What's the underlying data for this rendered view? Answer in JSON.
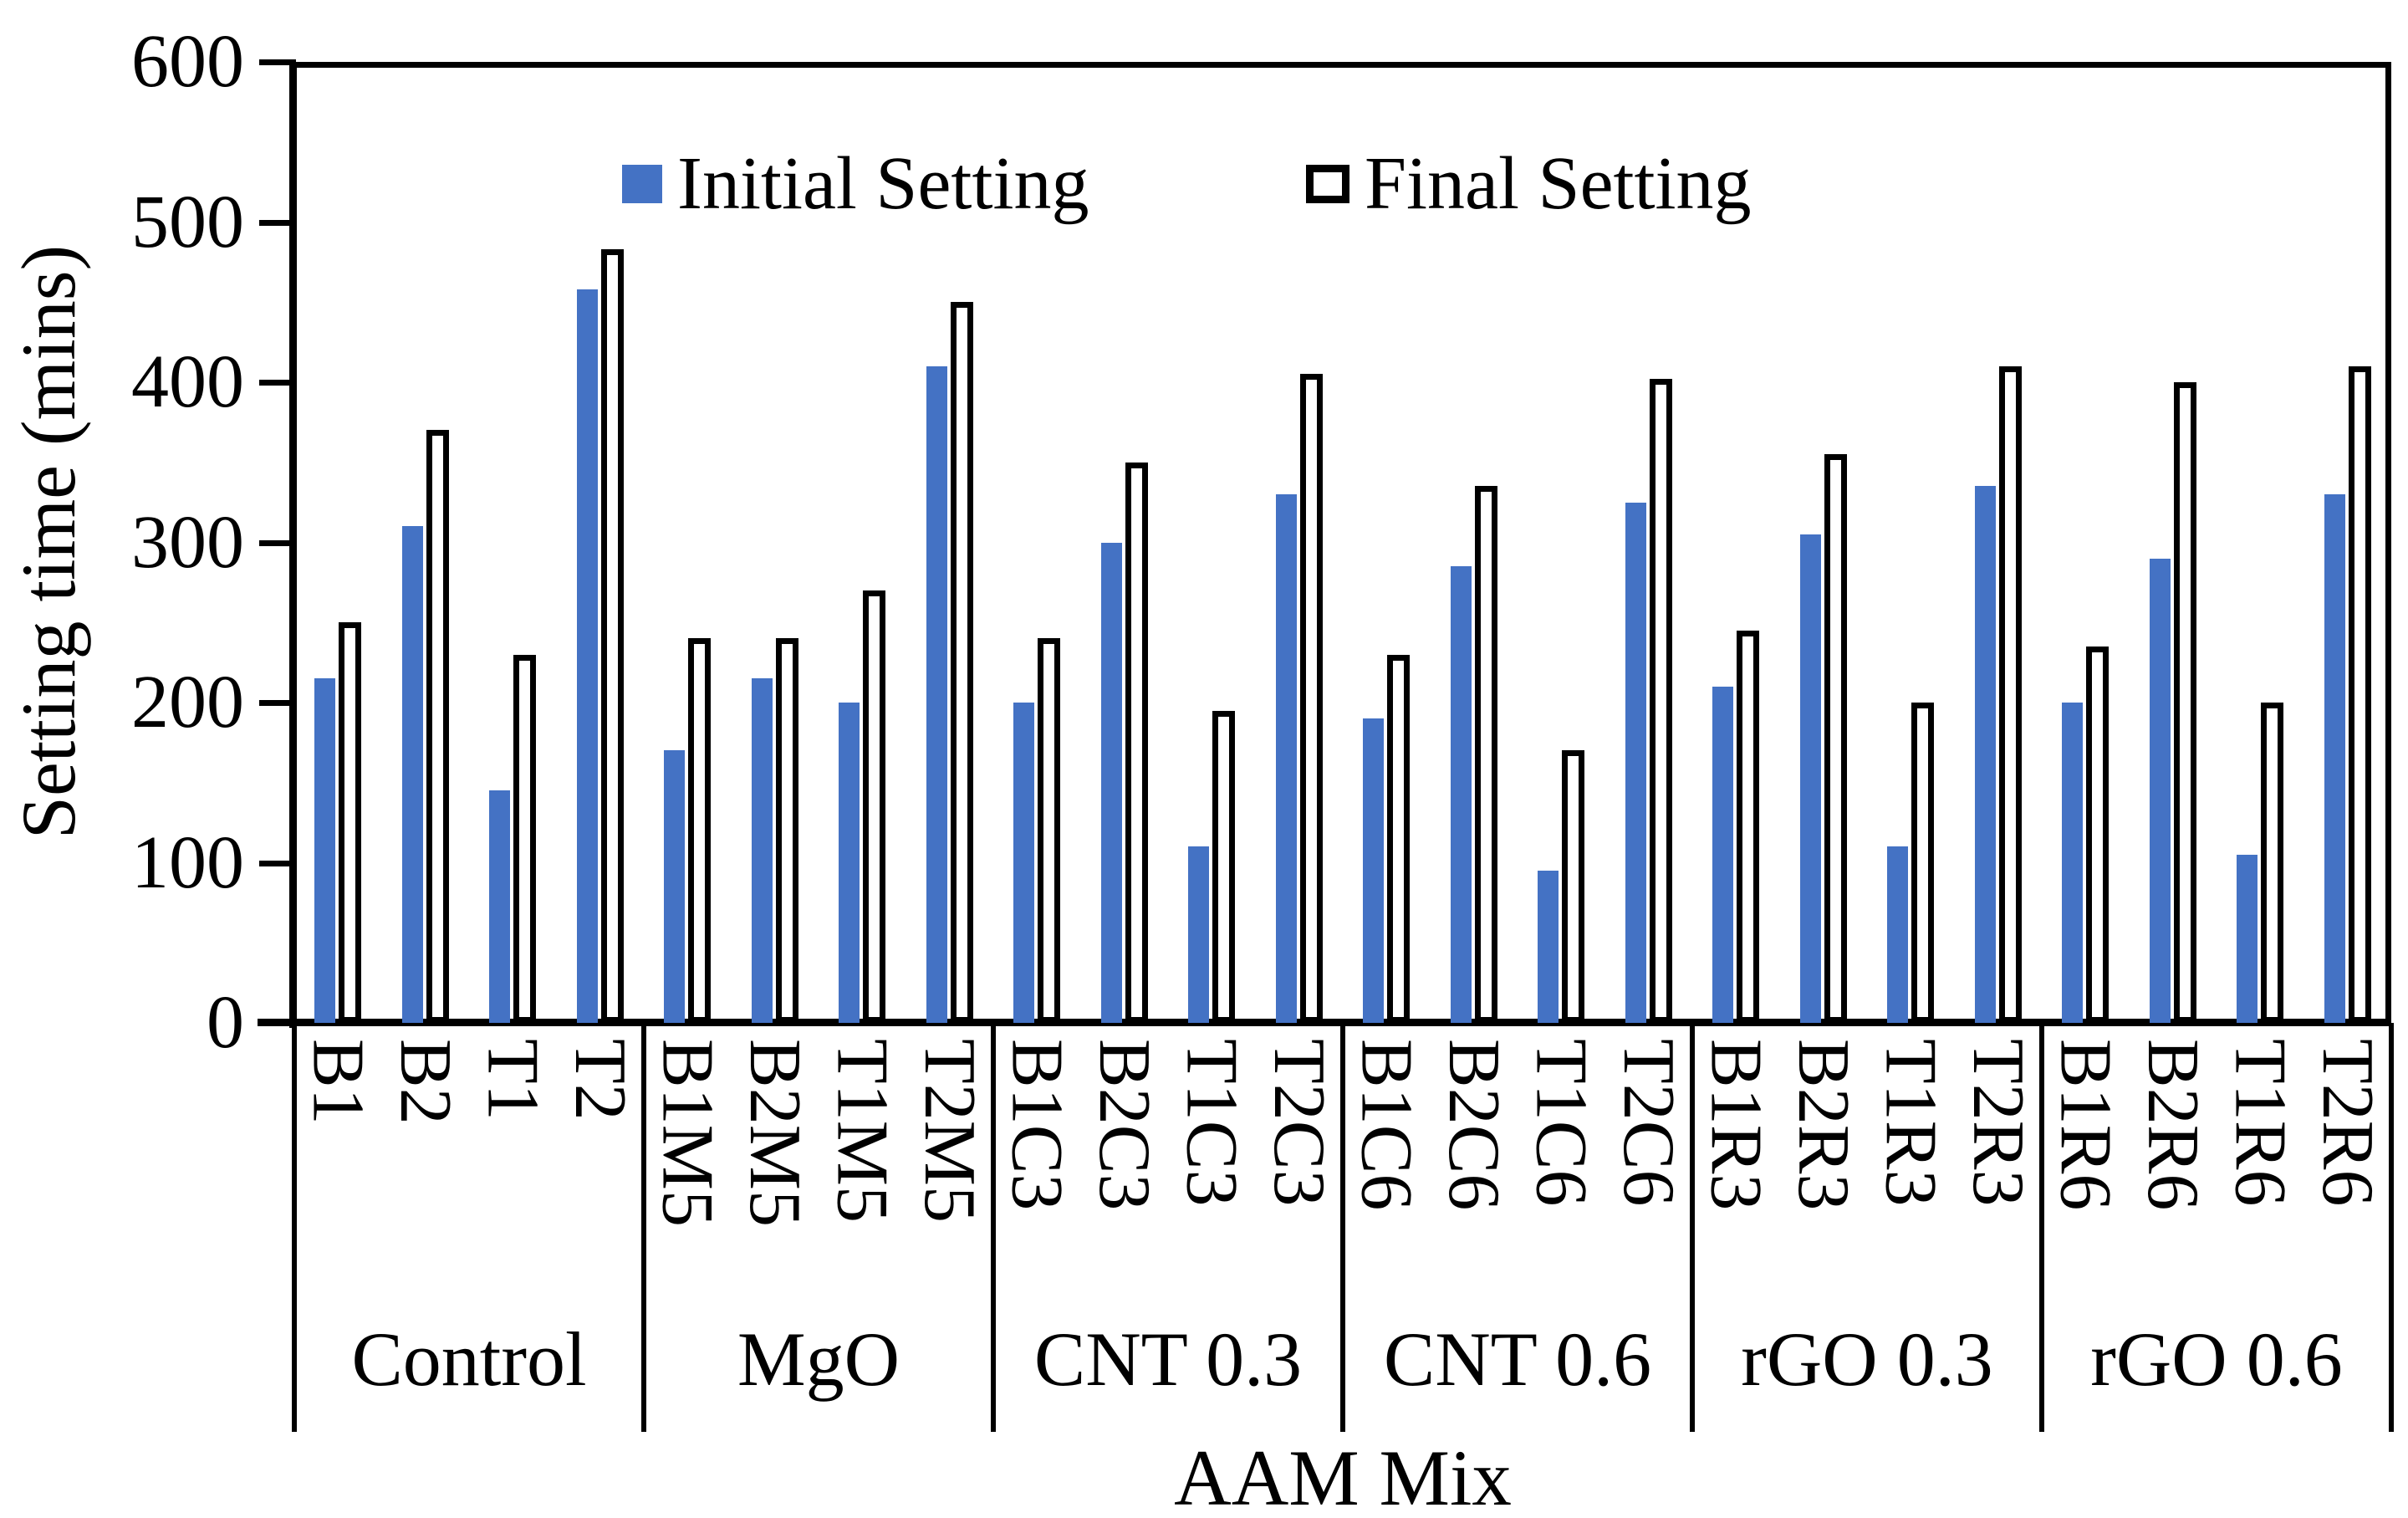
{
  "figure": {
    "ylabel": "Setting time (mins)",
    "xlabel": "AAM Mix"
  },
  "legend": [
    {
      "label": "Initial Setting",
      "fill": "#4472C4",
      "border": null
    },
    {
      "label": "Final Setting",
      "fill": "#FFFFFF",
      "border": "#000000"
    }
  ],
  "chart_data": {
    "type": "bar",
    "title": "",
    "xlabel": "AAM Mix",
    "ylabel": "Setting time (mins)",
    "ylim": [
      0,
      600
    ],
    "yticks": [
      0,
      100,
      200,
      300,
      400,
      500,
      600
    ],
    "grid": false,
    "legend_position": "top-inside",
    "bar_colors": {
      "initial": "#4472C4",
      "final_fill": "#FFFFFF",
      "final_border": "#000000"
    },
    "groups": [
      {
        "label": "Control",
        "categories": [
          "B1",
          "B2",
          "T1",
          "T2"
        ]
      },
      {
        "label": "MgO",
        "categories": [
          "B1M5",
          "B2M5",
          "T1M5",
          "T2M5"
        ]
      },
      {
        "label": "CNT 0.3",
        "categories": [
          "B1C3",
          "B2C3",
          "T1C3",
          "T2C3"
        ]
      },
      {
        "label": "CNT 0.6",
        "categories": [
          "B1C6",
          "B2C6",
          "T1C6",
          "T2C6"
        ]
      },
      {
        "label": "rGO 0.3",
        "categories": [
          "B1R3",
          "B2R3",
          "T1R3",
          "T2R3"
        ]
      },
      {
        "label": "rGO 0.6",
        "categories": [
          "B1R6",
          "B2R6",
          "T1R6",
          "T2R6"
        ]
      }
    ],
    "categories": [
      "B1",
      "B2",
      "T1",
      "T2",
      "B1M5",
      "B2M5",
      "T1M5",
      "T2M5",
      "B1C3",
      "B2C3",
      "T1C3",
      "T2C3",
      "B1C6",
      "B2C6",
      "T1C6",
      "T2C6",
      "B1R3",
      "B2R3",
      "T1R3",
      "T2R3",
      "B1R6",
      "B2R6",
      "T1R6",
      "T2R6"
    ],
    "series": [
      {
        "name": "Initial Setting",
        "values": [
          215,
          310,
          145,
          458,
          170,
          215,
          200,
          410,
          200,
          300,
          110,
          330,
          190,
          285,
          95,
          325,
          210,
          305,
          110,
          335,
          200,
          290,
          105,
          330
        ]
      },
      {
        "name": "Final Setting",
        "values": [
          250,
          370,
          230,
          483,
          240,
          240,
          270,
          450,
          240,
          350,
          195,
          405,
          230,
          335,
          170,
          402,
          245,
          355,
          200,
          410,
          235,
          400,
          200,
          410
        ]
      }
    ]
  }
}
